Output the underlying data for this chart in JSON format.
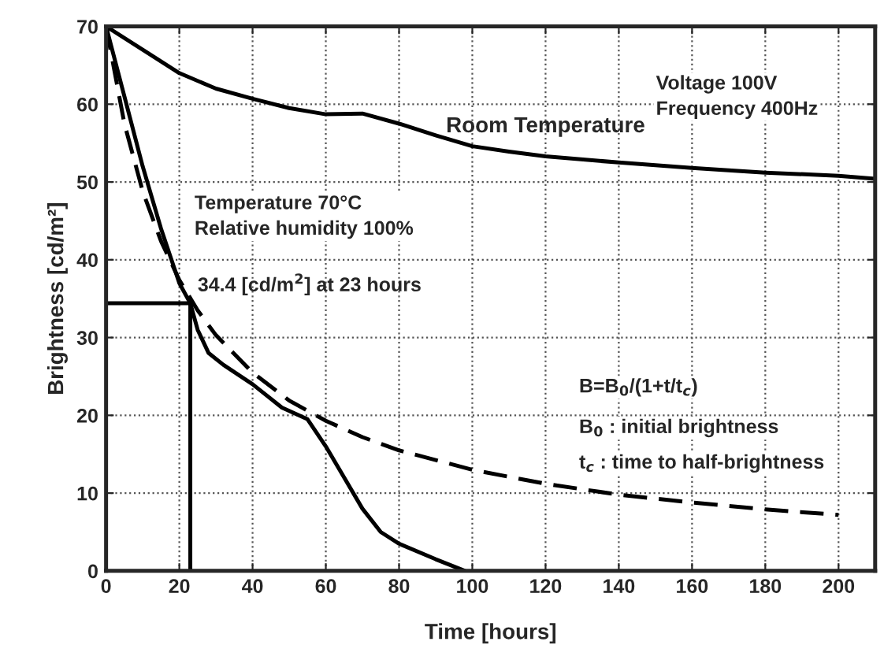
{
  "chart_data": {
    "type": "line",
    "xlabel": "Time [hours]",
    "ylabel": "Brightness [cd/m²]",
    "xlim": [
      0,
      210
    ],
    "ylim": [
      0,
      70
    ],
    "xticks": [
      0,
      20,
      40,
      60,
      80,
      100,
      120,
      140,
      160,
      180,
      200
    ],
    "yticks": [
      0,
      10,
      20,
      30,
      40,
      50,
      60,
      70
    ],
    "grid": true,
    "line_style": "solid",
    "marker": "none",
    "series": [
      {
        "name": "Room Temperature",
        "color": "#000000",
        "x": [
          0,
          10,
          20,
          30,
          40,
          50,
          60,
          70,
          80,
          90,
          100,
          110,
          120,
          140,
          160,
          180,
          200,
          210
        ],
        "values": [
          70,
          67,
          64,
          62,
          60.7,
          59.5,
          58.7,
          58.8,
          57.5,
          56,
          54.6,
          53.9,
          53.3,
          52.5,
          51.8,
          51.2,
          50.8,
          50.4
        ]
      },
      {
        "color": "#000000",
        "x": [
          0,
          5,
          10,
          15,
          20,
          23,
          25,
          28,
          32,
          40,
          48,
          55,
          60,
          65,
          70,
          75,
          80,
          90,
          98
        ],
        "values": [
          70,
          61,
          52,
          44,
          37,
          34.4,
          31,
          28,
          26.5,
          24,
          21,
          19.5,
          16,
          12,
          8,
          5,
          3.5,
          1.5,
          0
        ]
      },
      {
        "color": "#000000",
        "line_style": "dashed",
        "x": [
          0,
          5,
          10,
          15,
          20,
          25,
          30,
          40,
          50,
          60,
          70,
          80,
          100,
          120,
          140,
          160,
          180,
          200
        ],
        "values": [
          70,
          57.5,
          48.8,
          42.4,
          37.4,
          33.5,
          30.3,
          25.5,
          21.9,
          19.3,
          17.2,
          15.5,
          13,
          11.2,
          9.8,
          8.8,
          7.9,
          7.2
        ]
      },
      {
        "color": "#000000",
        "x": [
          0,
          23,
          23
        ],
        "values": [
          34.4,
          34.4,
          0
        ]
      }
    ],
    "annotations": [
      {
        "text": "34.4 [cd/m$^{2}$] at 23 hours",
        "x": 23,
        "y": 34.4
      },
      "Voltage 100V\nFrequency 400Hz",
      "Temperature 70°C\nRelative humidity 100%",
      "B=B$_{0}$/(1+t/t$_{c}$)",
      "B$_{0}$ : initial brightness",
      "t$_{c}$ : time to half-brightness"
    ]
  }
}
